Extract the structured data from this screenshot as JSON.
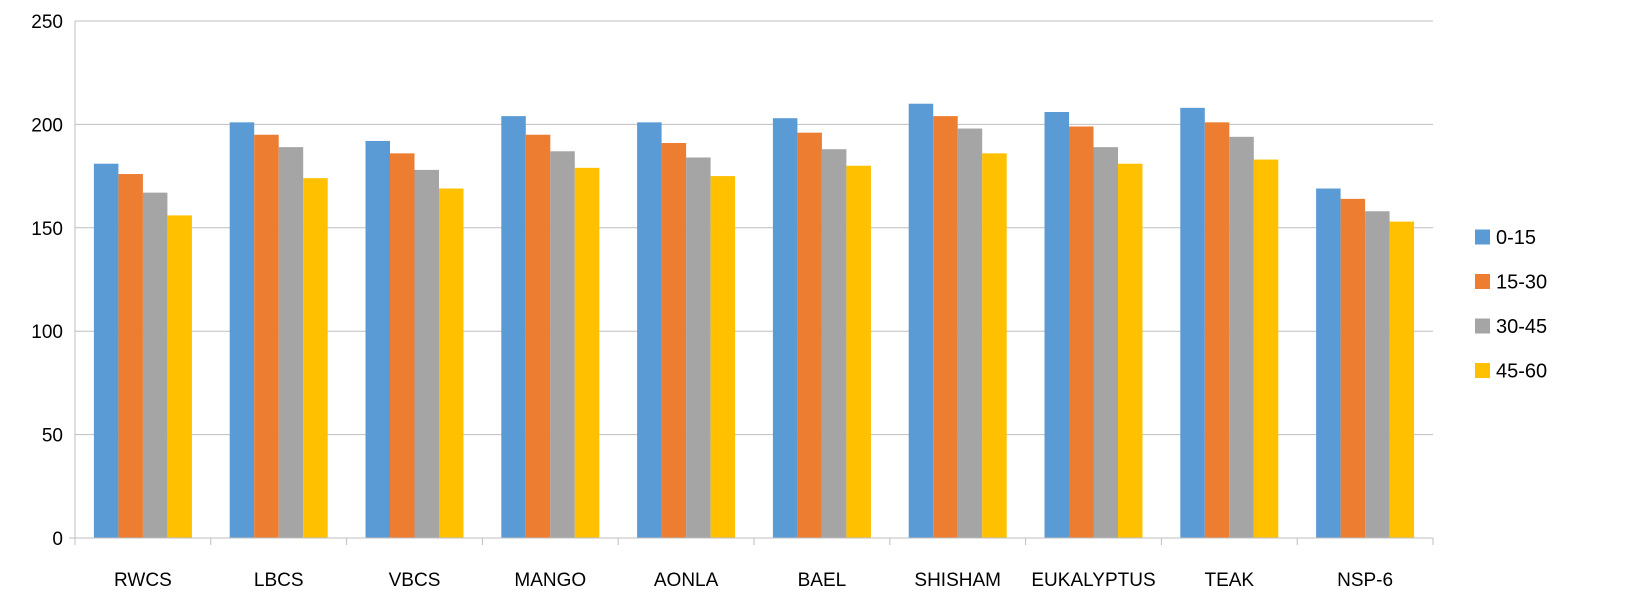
{
  "chart_data": {
    "type": "bar",
    "title": "",
    "xlabel": "",
    "ylabel": "",
    "ylim": [
      0,
      250
    ],
    "yticks": [
      0,
      50,
      100,
      150,
      200,
      250
    ],
    "grid": true,
    "legend_position": "right",
    "categories": [
      "RWCS",
      "LBCS",
      "VBCS",
      "MANGO",
      "AONLA",
      "BAEL",
      "SHISHAM",
      "EUKALYPTUS",
      "TEAK",
      "NSP-6"
    ],
    "series": [
      {
        "name": "0-15",
        "color": "#5B9BD5",
        "values": [
          181,
          201,
          192,
          204,
          201,
          203,
          210,
          206,
          208,
          169
        ]
      },
      {
        "name": "15-30",
        "color": "#ED7D31",
        "values": [
          176,
          195,
          186,
          195,
          191,
          196,
          204,
          199,
          201,
          164
        ]
      },
      {
        "name": "30-45",
        "color": "#A5A5A5",
        "values": [
          167,
          189,
          178,
          187,
          184,
          188,
          198,
          189,
          194,
          158
        ]
      },
      {
        "name": "45-60",
        "color": "#FFC000",
        "values": [
          156,
          174,
          169,
          179,
          175,
          180,
          186,
          181,
          183,
          153
        ]
      }
    ]
  }
}
